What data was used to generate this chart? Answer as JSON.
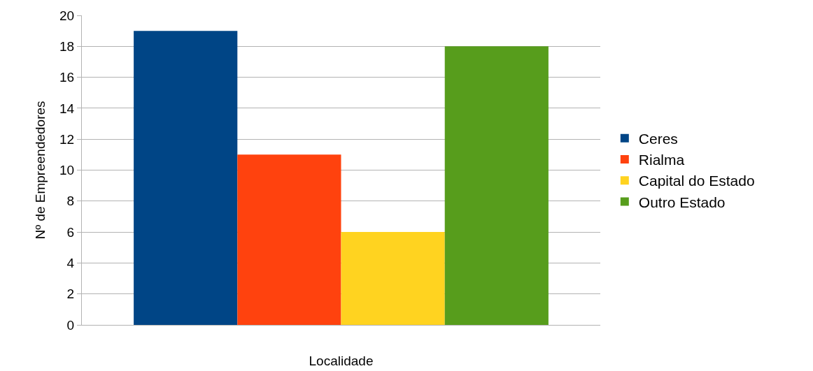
{
  "chart_data": {
    "type": "bar",
    "xlabel": "Localidade",
    "ylabel": "Nº de Empreendedores",
    "categories": [
      null
    ],
    "series": [
      {
        "name": "Ceres",
        "color": "#004586",
        "values": [
          19
        ]
      },
      {
        "name": "Rialma",
        "color": "#ff420e",
        "values": [
          11
        ]
      },
      {
        "name": "Capital do Estado",
        "color": "#ffd320",
        "values": [
          6
        ]
      },
      {
        "name": "Outro Estado",
        "color": "#579d1c",
        "values": [
          18
        ]
      }
    ],
    "ylim": [
      0,
      20
    ],
    "yticks": [
      0,
      2,
      4,
      6,
      8,
      10,
      12,
      14,
      16,
      18,
      20
    ],
    "grid": "y",
    "legend": "right"
  }
}
